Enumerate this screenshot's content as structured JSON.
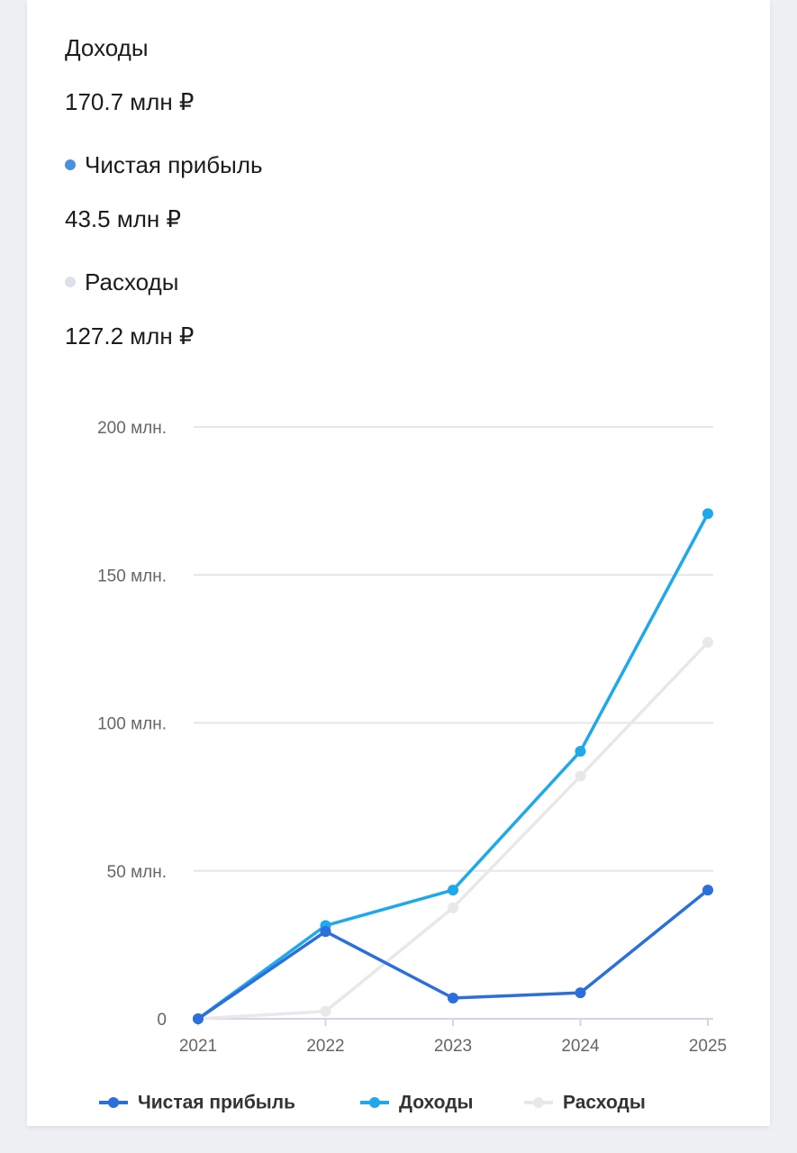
{
  "summary": [
    {
      "label": "Доходы",
      "value": "170.7 млн ₽"
    },
    {
      "label": "Чистая прибыль",
      "value": "43.5 млн ₽",
      "color": "#4a90e2"
    },
    {
      "label": "Расходы",
      "value": "127.2 млн ₽",
      "color": "#dde1ea"
    }
  ],
  "chart_data": {
    "type": "line",
    "categories": [
      "2021",
      "2022",
      "2023",
      "2024",
      "2025"
    ],
    "series": [
      {
        "name": "Чистая прибыль",
        "color": "#2a6fdb",
        "values": [
          0,
          29.5,
          7,
          8.8,
          43.5
        ]
      },
      {
        "name": "Доходы",
        "color": "#1fa8ea",
        "values": [
          0,
          31.5,
          43.5,
          90.4,
          170.7
        ]
      },
      {
        "name": "Расходы",
        "color": "#e8e8ea",
        "values": [
          0,
          2.5,
          37.5,
          82,
          127.2
        ]
      }
    ],
    "ylim": [
      0,
      200
    ],
    "yticks": [
      0,
      {
        "value": 50,
        "label": "50 млн."
      },
      {
        "value": 100,
        "label": "100 млн."
      },
      {
        "value": 150,
        "label": "150 млн."
      },
      {
        "value": 200,
        "label": "200 млн."
      }
    ],
    "grid": true
  }
}
